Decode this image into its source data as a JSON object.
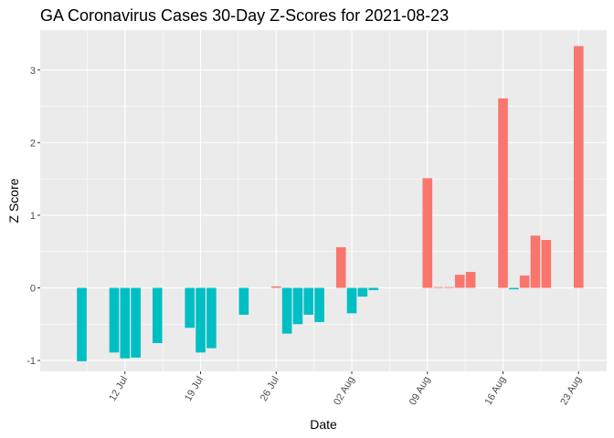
{
  "chart_data": {
    "type": "bar",
    "title": "GA Coronavirus Cases 30-Day Z-Scores for 2021-08-23",
    "xlabel": "Date",
    "ylabel": "Z Score",
    "ylim": [
      -1.15,
      3.55
    ],
    "y_ticks": [
      -1,
      0,
      1,
      2,
      3
    ],
    "y_tick_labels": [
      "-1",
      "0",
      "1",
      "2",
      "3"
    ],
    "x_ticks": [
      {
        "day": 12,
        "label": "12 Jul"
      },
      {
        "day": 19,
        "label": "19 Jul"
      },
      {
        "day": 26,
        "label": "26 Jul"
      },
      {
        "day": 33,
        "label": "02 Aug"
      },
      {
        "day": 40,
        "label": "09 Aug"
      },
      {
        "day": 47,
        "label": "16 Aug"
      },
      {
        "day": 54,
        "label": "23 Aug"
      }
    ],
    "x_range_days": [
      4.15,
      56.6
    ],
    "x_day_origin": "2021-07-01",
    "grid": true,
    "legend": "none",
    "colors": {
      "positive": "#f8766d",
      "negative": "#00bfc4",
      "panel": "#ebebeb",
      "grid_major": "#ffffff"
    },
    "points": [
      {
        "date": "2021-07-08",
        "day": 8,
        "value": -1.01
      },
      {
        "date": "2021-07-11",
        "day": 11,
        "value": -0.89
      },
      {
        "date": "2021-07-12",
        "day": 12,
        "value": -0.97
      },
      {
        "date": "2021-07-13",
        "day": 13,
        "value": -0.96
      },
      {
        "date": "2021-07-15",
        "day": 15,
        "value": -0.76
      },
      {
        "date": "2021-07-18",
        "day": 18,
        "value": -0.55
      },
      {
        "date": "2021-07-19",
        "day": 19,
        "value": -0.89
      },
      {
        "date": "2021-07-20",
        "day": 20,
        "value": -0.83
      },
      {
        "date": "2021-07-23",
        "day": 23,
        "value": -0.37
      },
      {
        "date": "2021-07-26",
        "day": 26,
        "value": 0.02
      },
      {
        "date": "2021-07-27",
        "day": 27,
        "value": -0.63
      },
      {
        "date": "2021-07-28",
        "day": 28,
        "value": -0.5
      },
      {
        "date": "2021-07-29",
        "day": 29,
        "value": -0.37
      },
      {
        "date": "2021-07-30",
        "day": 30,
        "value": -0.47
      },
      {
        "date": "2021-08-01",
        "day": 32,
        "value": 0.56
      },
      {
        "date": "2021-08-02",
        "day": 33,
        "value": -0.35
      },
      {
        "date": "2021-08-03",
        "day": 34,
        "value": -0.12
      },
      {
        "date": "2021-08-04",
        "day": 35,
        "value": -0.03
      },
      {
        "date": "2021-08-09",
        "day": 40,
        "value": 1.51
      },
      {
        "date": "2021-08-10",
        "day": 41,
        "value": 0.01
      },
      {
        "date": "2021-08-11",
        "day": 42,
        "value": 0.01
      },
      {
        "date": "2021-08-12",
        "day": 43,
        "value": 0.18
      },
      {
        "date": "2021-08-13",
        "day": 44,
        "value": 0.22
      },
      {
        "date": "2021-08-16",
        "day": 47,
        "value": 2.61
      },
      {
        "date": "2021-08-17",
        "day": 48,
        "value": -0.02
      },
      {
        "date": "2021-08-18",
        "day": 49,
        "value": 0.17
      },
      {
        "date": "2021-08-19",
        "day": 50,
        "value": 0.72
      },
      {
        "date": "2021-08-20",
        "day": 51,
        "value": 0.66
      },
      {
        "date": "2021-08-23",
        "day": 54,
        "value": 3.33
      }
    ]
  }
}
